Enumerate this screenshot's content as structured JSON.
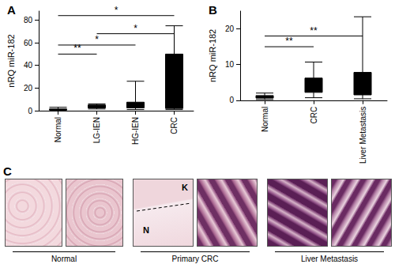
{
  "chart_data": [
    {
      "type": "boxplot",
      "title": "A",
      "y_label": "nRQ miR-182",
      "categories": [
        "Normal",
        "LG-IEN",
        "HG-IEN",
        "CRC"
      ],
      "values": [
        [
          0.3,
          0.8,
          1,
          1.5,
          3
        ],
        [
          1.5,
          2.5,
          4,
          5,
          6
        ],
        [
          1,
          2.5,
          4,
          7.5,
          26
        ],
        [
          1,
          2,
          8,
          50,
          75
        ]
      ],
      "color": "#000000",
      "ylim": [
        0,
        88
      ],
      "yticks": [
        0,
        20,
        40,
        60,
        80
      ],
      "grid": false,
      "comparisons": [
        {
          "from": "Normal",
          "to": "LG-IEN",
          "y": 50,
          "label": "**"
        },
        {
          "from": "Normal",
          "to": "HG-IEN",
          "y": 58,
          "label": "*"
        },
        {
          "from": "LG-IEN",
          "to": "CRC",
          "y": 68,
          "label": "*"
        },
        {
          "from": "Normal",
          "to": "CRC",
          "y": 84,
          "label": "*"
        }
      ]
    },
    {
      "type": "boxplot",
      "title": "B",
      "y_label": "nRQ miR-182",
      "categories": [
        "Normal",
        "CRC",
        "Liver Metastasis"
      ],
      "values": [
        [
          0.2,
          0.6,
          1,
          1.3,
          2
        ],
        [
          0.7,
          2.2,
          4,
          6.2,
          10.7
        ],
        [
          0.4,
          1.5,
          3,
          7.8,
          23.4
        ]
      ],
      "color": "#000000",
      "ylim": [
        0,
        25
      ],
      "yticks": [
        0,
        10,
        20
      ],
      "grid": false,
      "comparisons": [
        {
          "from": "Normal",
          "to": "CRC",
          "y": 15,
          "label": "**"
        },
        {
          "from": "Normal",
          "to": "Liver Metastasis",
          "y": 18,
          "label": "**"
        }
      ]
    }
  ],
  "panel_c": {
    "title": "C",
    "groups": [
      {
        "label": "Normal",
        "annotations": []
      },
      {
        "label": "Primary CRC",
        "annotations": [
          "K",
          "N"
        ]
      },
      {
        "label": "Liver Metastasis",
        "annotations": []
      }
    ]
  }
}
